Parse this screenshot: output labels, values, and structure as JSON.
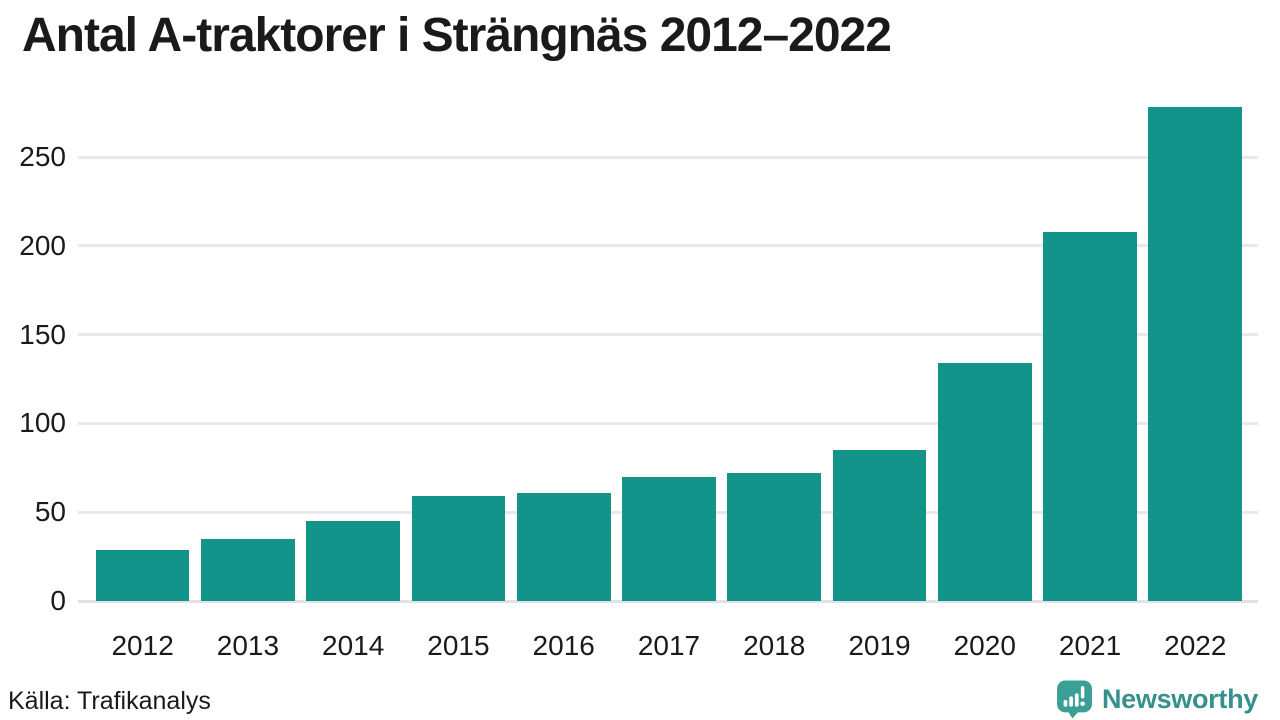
{
  "title": "Antal A-traktorer i Strängnäs 2012–2022",
  "source": "Källa: Trafikanalys",
  "logo": {
    "text": "Newsworthy"
  },
  "colors": {
    "bar": "#13948a",
    "grid": "#e9e9ed",
    "baseline": "#e2e2e6",
    "text": "#1a1a1a",
    "logo_bubble": "#3aa096",
    "logo_text": "#35918b"
  },
  "chart_data": {
    "type": "bar",
    "title": "Antal A-traktorer i Strängnäs 2012–2022",
    "categories": [
      "2012",
      "2013",
      "2014",
      "2015",
      "2016",
      "2017",
      "2018",
      "2019",
      "2020",
      "2021",
      "2022"
    ],
    "values": [
      29,
      35,
      45,
      59,
      61,
      70,
      72,
      85,
      134,
      208,
      278
    ],
    "xlabel": "",
    "ylabel": "",
    "ylim": [
      0,
      285
    ],
    "yticks": [
      0,
      50,
      100,
      150,
      200,
      250
    ],
    "grid": true,
    "legend": false,
    "bar_color": "#13948a",
    "source": "Källa: Trafikanalys"
  }
}
